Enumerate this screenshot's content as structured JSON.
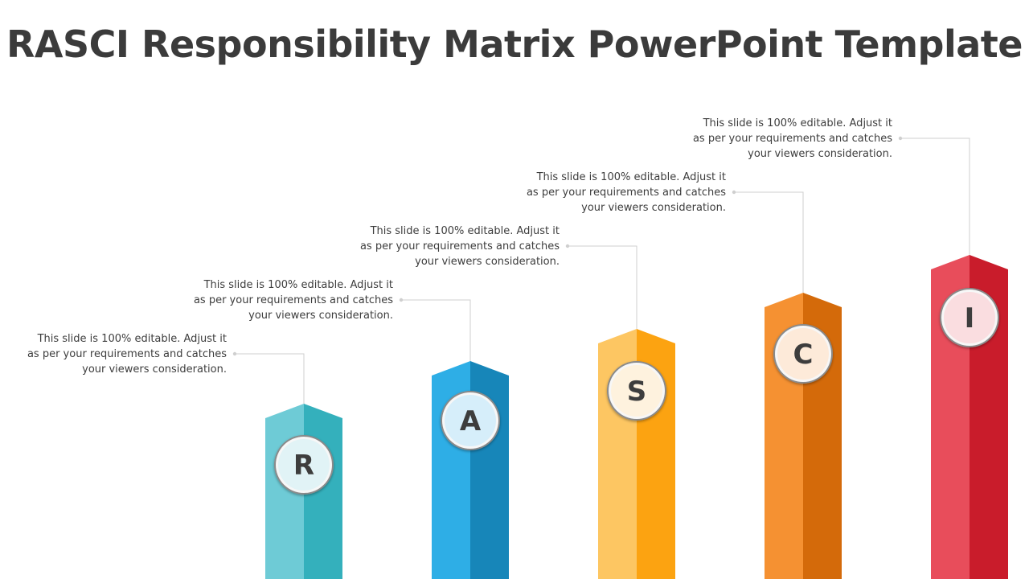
{
  "title": "RASCI Responsibility Matrix PowerPoint Template",
  "steps": [
    {
      "letter": "R",
      "text_lines": [
        "This slide is 100% editable. Adjust it",
        "as per your requirements and catches",
        "your viewers consideration."
      ],
      "color_light": "#6ECBD6",
      "color_dark": "#34B0BC",
      "badge_fill": "#E1F3F6"
    },
    {
      "letter": "A",
      "text_lines": [
        "This slide is 100% editable. Adjust it",
        "as per your requirements and catches",
        "your viewers consideration."
      ],
      "color_light": "#2EAEE6",
      "color_dark": "#1786B9",
      "badge_fill": "#D6EEFA"
    },
    {
      "letter": "S",
      "text_lines": [
        "This slide is 100% editable. Adjust it",
        "as per your requirements and catches",
        "your viewers consideration."
      ],
      "color_light": "#FDC662",
      "color_dark": "#FCA311",
      "badge_fill": "#FEF2DE"
    },
    {
      "letter": "C",
      "text_lines": [
        "This slide is 100% editable. Adjust it",
        "as per your requirements and catches",
        "your viewers consideration."
      ],
      "color_light": "#F59132",
      "color_dark": "#D46A0A",
      "badge_fill": "#FDEAD9"
    },
    {
      "letter": "I",
      "text_lines": [
        "This slide is 100% editable. Adjust it",
        "as per your requirements and catches",
        "your viewers consideration."
      ],
      "color_light": "#E84D5B",
      "color_dark": "#C91C2B",
      "badge_fill": "#FADDE0"
    }
  ]
}
